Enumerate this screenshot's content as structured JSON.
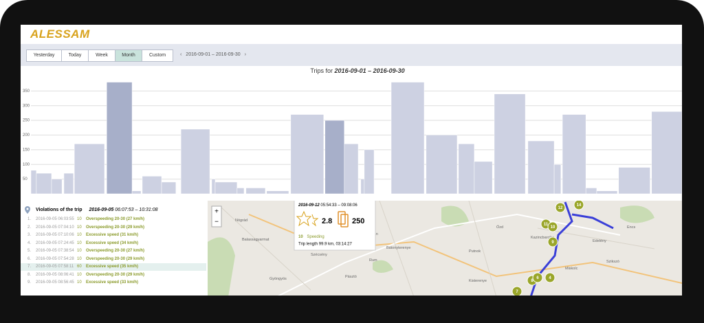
{
  "header": {
    "logo": "ALESSAM"
  },
  "toolbar": {
    "buttons": [
      "Yesterday",
      "Today",
      "Week",
      "Month",
      "Custom"
    ],
    "active": 3,
    "prev": "‹",
    "range": "2016-09-01 – 2016-09-30",
    "next": "›"
  },
  "chart_data": {
    "type": "bar",
    "title": "Trips for",
    "title_range": "2016-09-01 – 2016-09-30",
    "x_start": [
      0,
      0.25,
      0.95,
      1.52,
      2.0,
      3.49,
      4.66,
      5.13,
      6.02,
      6.91,
      8.33,
      8.49,
      9.5,
      9.91,
      10.86,
      11.97,
      13.55,
      14.44,
      15.2,
      15.36,
      16.6,
      18.21,
      19.7,
      20.43,
      21.35,
      22.9,
      24.11,
      24.49,
      25.57,
      26.07,
      27.08,
      28.6
    ],
    "x_end": [
      0.25,
      0.95,
      1.43,
      1.96,
      3.39,
      4.66,
      5.07,
      6.02,
      6.68,
      8.24,
      8.49,
      9.5,
      9.82,
      10.8,
      11.88,
      13.49,
      14.44,
      15.08,
      15.36,
      15.81,
      18.12,
      19.64,
      20.43,
      21.26,
      22.78,
      24.11,
      24.42,
      25.57,
      26.07,
      27.02,
      28.53,
      29.99
    ],
    "values": [
      80,
      70,
      50,
      70,
      170,
      380,
      10,
      60,
      40,
      220,
      50,
      40,
      20,
      20,
      10,
      270,
      250,
      170,
      50,
      150,
      380,
      200,
      170,
      110,
      340,
      180,
      100,
      270,
      20,
      10,
      90,
      280
    ],
    "color": "#cdd1e2",
    "highlight_color": "#a7afc9",
    "highlighted": [
      5,
      16
    ],
    "xlim": [
      0,
      30
    ],
    "ylim": [
      0,
      400
    ],
    "yticks": [
      50,
      100,
      150,
      200,
      250,
      300,
      350
    ],
    "grid": true
  },
  "violations": {
    "title": "Violations of the trip",
    "date": "2016-09-05",
    "times": "06:07:53 – 10:31:08",
    "rows": [
      {
        "n": "1.",
        "time": "2016-09-05 06:03:55",
        "count": "10",
        "text": "Overspeeding 20-30 (27 km/h)"
      },
      {
        "n": "2.",
        "time": "2016-09-05 07:04:10",
        "count": "10",
        "text": "Overspeeding 20-30 (29 km/h)"
      },
      {
        "n": "3.",
        "time": "2016-09-05 07:10:06",
        "count": "10",
        "text": "Excessive speed (31 km/h)"
      },
      {
        "n": "4.",
        "time": "2016-09-05 07:24:45",
        "count": "10",
        "text": "Excessive speed (34 km/h)"
      },
      {
        "n": "5.",
        "time": "2016-09-05 07:38:54",
        "count": "10",
        "text": "Overspeeding 20-30 (27 km/h)"
      },
      {
        "n": "6.",
        "time": "2016-09-05 07:54:28",
        "count": "10",
        "text": "Overspeeding 20-30 (29 km/h)"
      },
      {
        "n": "7.",
        "time": "2016-09-05 07:58:11",
        "count": "60",
        "text": "Excessive speed (35 km/h)"
      },
      {
        "n": "8.",
        "time": "2016-09-05 08:06:41",
        "count": "10",
        "text": "Overspeeding 20-30 (29 km/h)"
      },
      {
        "n": "9.",
        "time": "2016-09-05 08:56:45",
        "count": "10",
        "text": "Excessive speed (33 km/h)"
      }
    ],
    "selected": 6
  },
  "map": {
    "zoom_in": "+",
    "zoom_out": "−",
    "popup": {
      "date": "2016-09-12",
      "times": "05:54:33 – 09:08:06",
      "score": "2.8",
      "count": "250",
      "violation_count": "10",
      "violation": "Speeding",
      "trip": "Trip length 99.9 km, 03:14:27"
    },
    "places": [
      "Nógrád",
      "Balassagyarmat",
      "Szécsény",
      "Salgótarján",
      "Bátonyterenye",
      "Pásztó",
      "Kisterenye",
      "Ózd",
      "Putnok",
      "Kazincbarcika",
      "Miskolc",
      "Edelény",
      "Szikszó",
      "Encs",
      "Gyöngyös",
      "Rum"
    ],
    "markers": [
      "12",
      "14",
      "11",
      "10",
      "9",
      "8",
      "6",
      "4",
      "7"
    ]
  }
}
